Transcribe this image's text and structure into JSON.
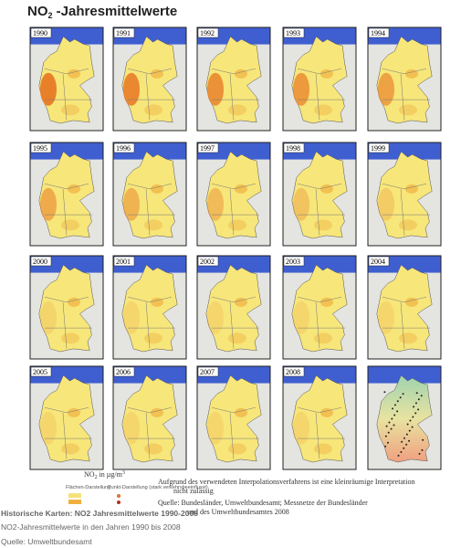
{
  "header": {
    "title": {
      "main": "NO",
      "sub": "2",
      "rest": " -Jahresmittelwerte"
    }
  },
  "maps": {
    "panels": [
      "1990",
      "1991",
      "1992",
      "1993",
      "1994",
      "1995",
      "1996",
      "1997",
      "1998",
      "1999",
      "2000",
      "2001",
      "2002",
      "2003",
      "2004",
      "2005",
      "2006",
      "2007",
      "2008"
    ]
  },
  "legend": {
    "title": {
      "main": "NO",
      "sub": "2",
      "rest": " in µg/m",
      "sup": "3"
    },
    "area": "Flächen-Darstellung",
    "point": "Punkt-Darstellung (stark verkehrsbeeinflusst)"
  },
  "notes": {
    "interpolation": [
      "Aufgrund des verwendeten Interpolationsverfahrens ist eine kleinräumige Interpretation",
      "nicht zulässig"
    ],
    "source": [
      "Quelle: Bundesländer, Umweltbundesamt; Messnetze der Bundesländer",
      "und des Umweltbundesamtes 2008"
    ]
  },
  "caption": {
    "title": "Historische Karten: NO2 Jahresmittelwerte 1990-2008",
    "description": "NO2-Jahresmittelwerte in den Jahren 1990 bis 2008",
    "source": "Quelle: Umweltbundesamt"
  }
}
